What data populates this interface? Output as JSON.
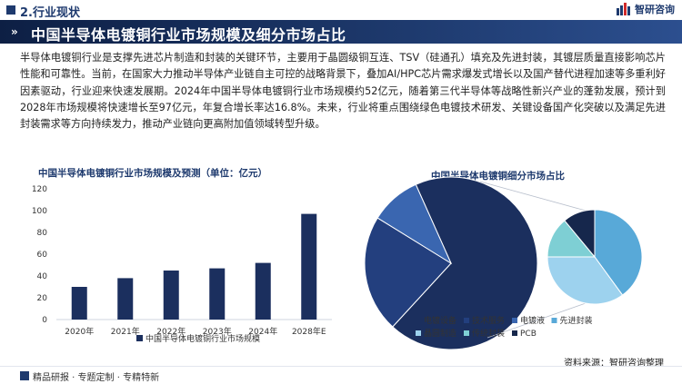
{
  "header": {
    "section_label": "2.行业现状",
    "brand_name": "智研咨询",
    "title": "中国半导体电镀铜行业市场规模及细分市场占比"
  },
  "paragraph": "半导体电镀铜行业是支撑先进芯片制造和封装的关键环节，主要用于晶圆级铜互连、TSV（硅通孔）填充及先进封装，其镀层质量直接影响芯片性能和可靠性。当前，在国家大力推动半导体产业链自主可控的战略背景下，叠加AI/HPC芯片需求爆发式增长以及国产替代进程加速等多重利好因素驱动，行业迎来快速发展期。2024年中国半导体电镀铜行业市场规模约52亿元，随着第三代半导体等战略性新兴产业的蓬勃发展，预计到2028年市场规模将快速增长至97亿元，年复合增长率达16.8%。未来，行业将重点围绕绿色电镀技术研发、关键设备国产化突破以及满足先进封装需求等方向持续发力，推动产业链向更高附加值领域转型升级。",
  "colors": {
    "navy": "#1e3a6e",
    "bar": "#1b2f5e",
    "pie": [
      "#1b2f5e",
      "#233f7e",
      "#3a66b0",
      "#58a9d8",
      "#9dd2ee",
      "#7ecfd4",
      "#16274c"
    ]
  },
  "chart_data": [
    {
      "type": "bar",
      "title": "中国半导体电镀铜行业市场规模及预测（单位：亿元）",
      "categories": [
        "2020年",
        "2021年",
        "2022年",
        "2023年",
        "2024年",
        "2028年E"
      ],
      "series": [
        {
          "name": "中国半导体电镀铜行业市场规模",
          "values": [
            30,
            38,
            45,
            47,
            52,
            97
          ]
        }
      ],
      "ylim": [
        0,
        120
      ],
      "yticks": [
        0,
        20,
        40,
        60,
        80,
        100,
        120
      ],
      "grid": false,
      "legend": "bottom"
    },
    {
      "type": "pie",
      "title": "中国半导体电镀铜细分市场占比",
      "slices": [
        {
          "label": "电镀设备",
          "value": 68.5
        },
        {
          "label": "技术服务",
          "value": 22.0
        },
        {
          "label": "电镀液",
          "value": 9.5
        }
      ],
      "sub_slices": [
        {
          "label": "先进封装",
          "value": 40
        },
        {
          "label": "晶圆制造",
          "value": 35
        },
        {
          "label": "传统封装",
          "value": 14
        },
        {
          "label": "PCB",
          "value": 11
        }
      ],
      "legend": "bottom"
    }
  ],
  "footer": {
    "motto": "精品研报 · 专题定制 · 专精特新",
    "source": "资料来源：智研咨询整理"
  }
}
